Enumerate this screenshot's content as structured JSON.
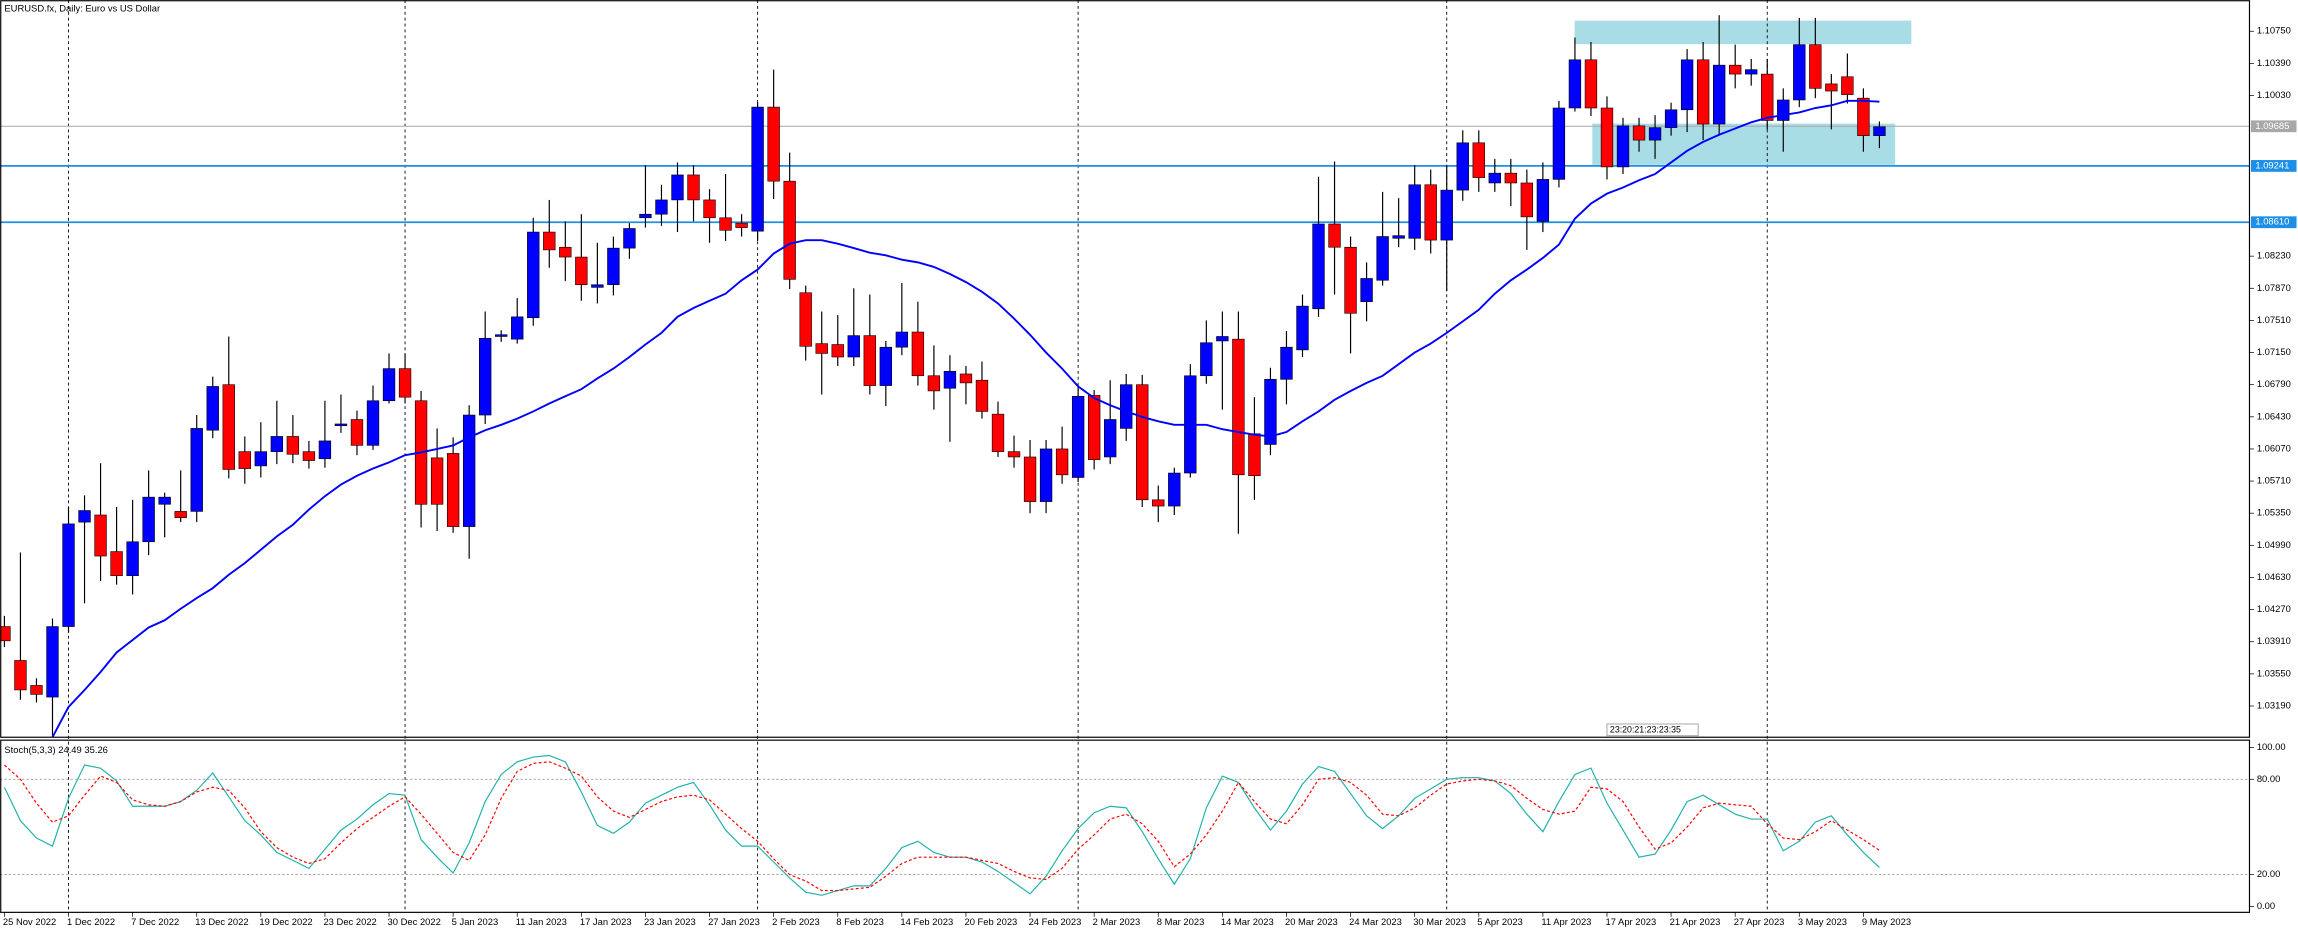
{
  "chart_data": [
    {
      "type": "candlestick",
      "title": "EURUSD.fx, Daily:  Euro vs US Dollar",
      "categories": [
        "25 Nov 2022",
        null,
        null,
        null,
        "1 Dec 2022",
        null,
        null,
        null,
        "7 Dec 2022",
        null,
        null,
        null,
        "13 Dec 2022",
        null,
        null,
        null,
        "19 Dec 2022",
        null,
        null,
        null,
        "23 Dec 2022",
        null,
        null,
        null,
        "30 Dec 2022",
        null,
        null,
        null,
        "5 Jan 2023",
        null,
        null,
        null,
        "11 Jan 2023",
        null,
        null,
        null,
        "17 Jan 2023",
        null,
        null,
        null,
        "23 Jan 2023",
        null,
        null,
        null,
        "27 Jan 2023",
        null,
        null,
        null,
        "2 Feb 2023",
        null,
        null,
        null,
        "8 Feb 2023",
        null,
        null,
        null,
        "14 Feb 2023",
        null,
        null,
        null,
        "20 Feb 2023",
        null,
        null,
        null,
        "24 Feb 2023",
        null,
        null,
        null,
        "2 Mar 2023",
        null,
        null,
        null,
        "8 Mar 2023",
        null,
        null,
        null,
        "14 Mar 2023",
        null,
        null,
        null,
        "20 Mar 2023",
        null,
        null,
        null,
        "24 Mar 2023",
        null,
        null,
        null,
        "30 Mar 2023",
        null,
        null,
        null,
        "5 Apr 2023",
        null,
        null,
        null,
        "11 Apr 2023",
        null,
        null,
        null,
        "17 Apr 2023",
        null,
        null,
        null,
        "21 Apr 2023",
        null,
        null,
        null,
        "27 Apr 2023",
        null,
        null,
        null,
        "3 May 2023",
        null,
        null,
        null,
        "9 May 2023",
        null
      ],
      "open": [
        1.0408,
        1.037,
        1.0342,
        1.0329,
        1.0408,
        1.0525,
        1.0533,
        1.0492,
        1.0465,
        1.0503,
        1.0545,
        1.0537,
        1.0537,
        1.0628,
        1.0679,
        1.0604,
        1.0588,
        1.0604,
        1.0621,
        1.0604,
        1.0596,
        1.0633,
        1.064,
        1.0611,
        1.0661,
        1.0697,
        1.0661,
        1.0597,
        1.0602,
        1.052,
        1.0645,
        1.0733,
        1.073,
        1.0754,
        1.085,
        1.0833,
        1.0822,
        1.0788,
        1.0791,
        1.0832,
        1.0866,
        1.087,
        1.0886,
        1.0914,
        1.0886,
        1.0866,
        1.086,
        1.0851,
        1.099,
        1.0907,
        1.0782,
        1.0725,
        1.0724,
        1.071,
        1.0734,
        1.0678,
        1.0721,
        1.0738,
        1.0689,
        1.0675,
        1.0691,
        1.0684,
        1.0646,
        1.0604,
        1.0598,
        1.0548,
        1.0607,
        1.0575,
        1.0667,
        1.0598,
        1.063,
        1.0679,
        1.055,
        1.0543,
        1.058,
        1.0689,
        1.0728,
        1.073,
        1.0624,
        1.0612,
        1.0685,
        1.0718,
        1.0764,
        1.0859,
        1.0833,
        1.0772,
        1.0796,
        1.0843,
        1.0843,
        1.0903,
        1.0841,
        1.0897,
        1.095,
        1.0905,
        1.0916,
        1.0905,
        1.0862,
        1.0909,
        1.0989,
        1.1043,
        1.0989,
        1.0923,
        1.0969,
        1.0953,
        1.0967,
        1.0987,
        1.1043,
        1.0971,
        1.1037,
        1.1027,
        1.1027,
        1.0975,
        1.0998,
        1.106,
        1.1016,
        1.1024,
        1.1,
        1.0958
      ],
      "high": [
        1.042,
        1.0491,
        1.035,
        1.0417,
        1.0542,
        1.0555,
        1.0591,
        1.0542,
        1.055,
        1.0583,
        1.0558,
        1.0583,
        1.0645,
        1.0688,
        1.0733,
        1.0621,
        1.0637,
        1.0661,
        1.0645,
        1.0616,
        1.0661,
        1.0668,
        1.065,
        1.0678,
        1.0714,
        1.0714,
        1.0672,
        1.063,
        1.062,
        1.0656,
        1.0761,
        1.074,
        1.0776,
        1.0866,
        1.0886,
        1.0862,
        1.087,
        1.0838,
        1.0845,
        1.086,
        1.0925,
        1.0903,
        1.0928,
        1.0925,
        1.0898,
        1.0915,
        1.087,
        1.0995,
        1.1032,
        1.0939,
        1.079,
        1.0761,
        1.0757,
        1.0787,
        1.078,
        1.0728,
        1.0793,
        1.0772,
        1.0723,
        1.0712,
        1.07,
        1.0705,
        1.066,
        1.0622,
        1.0617,
        1.0617,
        1.0632,
        1.0678,
        1.0673,
        1.0684,
        1.0691,
        1.069,
        1.0566,
        1.0586,
        1.0702,
        1.0751,
        1.0761,
        1.0761,
        1.0665,
        1.0698,
        1.0739,
        1.078,
        1.0912,
        1.0929,
        1.0845,
        1.0816,
        1.0895,
        1.0888,
        1.0925,
        1.092,
        1.0925,
        1.0964,
        1.0964,
        1.0932,
        1.0932,
        1.092,
        1.0928,
        1.0997,
        1.1068,
        1.1063,
        1.1002,
        1.0978,
        1.0978,
        1.0981,
        1.0995,
        1.1055,
        1.1063,
        1.1093,
        1.106,
        1.1044,
        1.1044,
        1.1011,
        1.109,
        1.109,
        1.1027,
        1.105,
        1.1011,
        1.0974
      ],
      "low": [
        1.0385,
        1.0326,
        1.0323,
        1.0286,
        1.0401,
        1.0434,
        1.0459,
        1.0455,
        1.0444,
        1.0488,
        1.0508,
        1.0525,
        1.0525,
        1.0619,
        1.0574,
        1.0568,
        1.0575,
        1.059,
        1.0591,
        1.0585,
        1.0586,
        1.0625,
        1.06,
        1.0606,
        1.0658,
        1.0658,
        1.0519,
        1.0515,
        1.0513,
        1.0484,
        1.0635,
        1.0727,
        1.0725,
        1.0745,
        1.081,
        1.0795,
        1.0773,
        1.077,
        1.0779,
        1.082,
        1.0855,
        1.0857,
        1.085,
        1.0862,
        1.0838,
        1.084,
        1.0845,
        1.084,
        1.0887,
        1.0786,
        1.0706,
        1.0668,
        1.07,
        1.07,
        1.0668,
        1.0655,
        1.0712,
        1.0678,
        1.0651,
        1.0615,
        1.0657,
        1.0641,
        1.0598,
        1.0586,
        1.0535,
        1.0535,
        1.0568,
        1.057,
        1.0584,
        1.059,
        1.0616,
        1.0542,
        1.0525,
        1.0533,
        1.0575,
        1.068,
        1.0651,
        1.0512,
        1.055,
        1.06,
        1.0657,
        1.071,
        1.0755,
        1.078,
        1.0714,
        1.075,
        1.079,
        1.0833,
        1.083,
        1.0826,
        1.0784,
        1.0885,
        1.0895,
        1.0895,
        1.0879,
        1.083,
        1.085,
        1.09,
        1.0985,
        1.098,
        1.0909,
        1.0915,
        1.094,
        1.0932,
        1.0958,
        1.0962,
        1.0953,
        1.0958,
        1.1011,
        1.1014,
        1.0965,
        1.094,
        1.099,
        1.1,
        1.0965,
        1.0994,
        1.094,
        1.0944
      ],
      "close": [
        1.0392,
        1.0337,
        1.0332,
        1.0408,
        1.0523,
        1.0538,
        1.0487,
        1.0465,
        1.0503,
        1.0553,
        1.0553,
        1.053,
        1.063,
        1.0677,
        1.0584,
        1.0585,
        1.0604,
        1.0621,
        1.0601,
        1.0594,
        1.0616,
        1.0635,
        1.0611,
        1.0661,
        1.0697,
        1.0665,
        1.0545,
        1.0545,
        1.052,
        1.0645,
        1.0731,
        1.0735,
        1.0755,
        1.085,
        1.083,
        1.0822,
        1.0791,
        1.0791,
        1.0832,
        1.0854,
        1.087,
        1.0886,
        1.0914,
        1.0886,
        1.0866,
        1.0852,
        1.0855,
        1.099,
        1.0907,
        1.0797,
        1.0722,
        1.0714,
        1.071,
        1.0734,
        1.0678,
        1.0721,
        1.0738,
        1.0689,
        1.0672,
        1.0694,
        1.0681,
        1.0649,
        1.0604,
        1.0598,
        1.0548,
        1.0607,
        1.0578,
        1.0666,
        1.0595,
        1.064,
        1.0679,
        1.055,
        1.0543,
        1.058,
        1.0689,
        1.0726,
        1.0733,
        1.0578,
        1.0577,
        1.0685,
        1.0721,
        1.0767,
        1.0859,
        1.0833,
        1.0759,
        1.0798,
        1.0845,
        1.0846,
        1.0903,
        1.0841,
        1.0897,
        1.095,
        1.0911,
        1.0916,
        1.0905,
        1.0867,
        1.0909,
        1.0989,
        1.1043,
        1.0989,
        1.0923,
        1.0969,
        1.0953,
        1.0967,
        1.0987,
        1.1043,
        1.0971,
        1.1037,
        1.1027,
        1.1032,
        1.0975,
        1.0998,
        1.106,
        1.1011,
        1.1008,
        1.1004,
        1.0958,
        1.0968
      ],
      "up_color": "#0000ff",
      "down_color": "#ff0000",
      "wick_color": "#000000",
      "ma": {
        "color": "#0000ff",
        "values": [
          null,
          null,
          null,
          1.0284,
          1.0318,
          1.0337,
          1.0357,
          1.0379,
          1.0393,
          1.0407,
          1.0415,
          1.0428,
          1.044,
          1.0451,
          1.0466,
          1.0479,
          1.0494,
          1.0509,
          1.0522,
          1.0539,
          1.0554,
          1.0567,
          1.0577,
          1.0585,
          1.0592,
          1.06,
          1.0603,
          1.0607,
          1.0611,
          1.062,
          1.0628,
          1.0634,
          1.0641,
          1.0649,
          1.0658,
          1.0666,
          1.0674,
          1.0686,
          1.0697,
          1.071,
          1.0724,
          1.0737,
          1.0755,
          1.0765,
          1.0773,
          1.0781,
          1.0796,
          1.0808,
          1.0826,
          1.0837,
          1.0841,
          1.0841,
          1.0837,
          1.0832,
          1.0827,
          1.0824,
          1.0819,
          1.0816,
          1.0811,
          1.0803,
          1.0794,
          1.0783,
          1.077,
          1.0753,
          1.0735,
          1.0715,
          1.0697,
          1.0677,
          1.0664,
          1.0656,
          1.0649,
          1.0643,
          1.0638,
          1.0634,
          1.0634,
          1.0634,
          1.0629,
          1.0626,
          1.0623,
          1.0621,
          1.0626,
          1.0638,
          1.0649,
          1.0662,
          1.0672,
          1.0681,
          1.0689,
          1.0702,
          1.0715,
          1.0725,
          1.0737,
          1.075,
          1.0763,
          1.0781,
          1.0796,
          1.0808,
          1.0821,
          1.0836,
          1.0865,
          1.0882,
          1.0893,
          1.09,
          1.0908,
          1.0915,
          1.0928,
          1.0941,
          1.0951,
          1.0959,
          1.0966,
          1.0973,
          1.0978,
          1.0981,
          1.0984,
          1.0989,
          1.0992,
          1.0997,
          1.0997,
          1.0996
        ]
      },
      "ylim": [
        1.0284,
        1.111
      ],
      "yticks": [
        {
          "value": 1.1075,
          "label": "1.10750"
        },
        {
          "value": 1.1039,
          "label": "1.10390"
        },
        {
          "value": 1.1003,
          "label": "1.10030"
        },
        {
          "value": 1.0823,
          "label": "1.08230"
        },
        {
          "value": 1.0787,
          "label": "1.07870"
        },
        {
          "value": 1.0751,
          "label": "1.07510"
        },
        {
          "value": 1.0715,
          "label": "1.07150"
        },
        {
          "value": 1.0679,
          "label": "1.06790"
        },
        {
          "value": 1.0643,
          "label": "1.06430"
        },
        {
          "value": 1.0607,
          "label": "1.06070"
        },
        {
          "value": 1.0571,
          "label": "1.05710"
        },
        {
          "value": 1.0535,
          "label": "1.05350"
        },
        {
          "value": 1.0499,
          "label": "1.04990"
        },
        {
          "value": 1.0463,
          "label": "1.04630"
        },
        {
          "value": 1.0427,
          "label": "1.04270"
        },
        {
          "value": 1.0391,
          "label": "1.03910"
        },
        {
          "value": 1.0355,
          "label": "1.03550"
        },
        {
          "value": 1.0319,
          "label": "1.03190"
        }
      ],
      "hlines": [
        {
          "value": 1.09241,
          "label": "1.09241",
          "color": "#1e8fe6"
        },
        {
          "value": 1.0861,
          "label": "1.08610",
          "color": "#1e8fe6"
        }
      ],
      "current_price": {
        "value": 1.09685,
        "label": "1.09685",
        "color": "#a8a8a8"
      },
      "countdown": "23:20:21:23:23:35"
    },
    {
      "type": "line",
      "title": "Stoch(5,3,3) 24.49 35.26",
      "ylim": [
        -3.7,
        104.6
      ],
      "yticks": [
        {
          "value": 100,
          "label": "100.00"
        },
        {
          "value": 80,
          "label": "80.00"
        },
        {
          "value": 20,
          "label": "20.00"
        },
        {
          "value": 0,
          "label": "0.00"
        }
      ],
      "levels": [
        80,
        20
      ],
      "series": [
        {
          "color": "#20b2aa",
          "dash": false,
          "values": [
            75,
            54,
            43,
            38,
            68,
            89,
            87,
            79,
            63,
            63,
            63,
            66,
            73,
            84,
            69,
            54,
            45,
            34,
            29,
            24,
            36,
            48,
            55,
            64,
            71,
            70,
            42,
            31,
            21,
            40,
            66,
            83,
            91,
            94,
            95,
            91,
            72,
            51,
            46,
            53,
            65,
            70,
            75,
            78,
            64,
            48,
            38,
            38,
            28,
            18,
            9,
            7,
            10,
            13,
            13,
            24,
            37,
            41,
            34,
            31,
            31,
            28,
            22,
            15,
            8,
            19,
            35,
            49,
            59,
            63,
            62,
            47,
            30,
            14,
            30,
            62,
            82,
            78,
            62,
            48,
            60,
            77,
            88,
            85,
            71,
            57,
            49,
            57,
            68,
            74,
            80,
            81,
            81,
            79,
            71,
            58,
            47,
            66,
            83,
            87,
            65,
            48,
            31,
            33,
            48,
            66,
            70,
            64,
            58,
            55,
            55,
            35,
            41,
            53,
            57,
            45,
            34,
            24.49
          ]
        },
        {
          "color": "#ff0000",
          "dash": true,
          "values": [
            89,
            80,
            65,
            53,
            57,
            70,
            82,
            78,
            67,
            64,
            63,
            66,
            72,
            75,
            73,
            62,
            47,
            37,
            31,
            27,
            30,
            40,
            49,
            56,
            63,
            69,
            58,
            46,
            34,
            29,
            45,
            68,
            85,
            90,
            91,
            87,
            82,
            69,
            60,
            56,
            61,
            66,
            69,
            70,
            67,
            58,
            49,
            41,
            30,
            20,
            16,
            10,
            10,
            11,
            12,
            19,
            27,
            31,
            31,
            31,
            31,
            29,
            27,
            22,
            18,
            17,
            24,
            36,
            45,
            55,
            58,
            52,
            41,
            25,
            33,
            45,
            60,
            78,
            66,
            55,
            52,
            64,
            80,
            81,
            78,
            70,
            58,
            57,
            62,
            70,
            77,
            79,
            80,
            79,
            76,
            68,
            61,
            58,
            60,
            75,
            74,
            66,
            50,
            36,
            40,
            50,
            62,
            65,
            64,
            63,
            52,
            43,
            42,
            47,
            54,
            48,
            42,
            35.26
          ]
        }
      ]
    }
  ]
}
